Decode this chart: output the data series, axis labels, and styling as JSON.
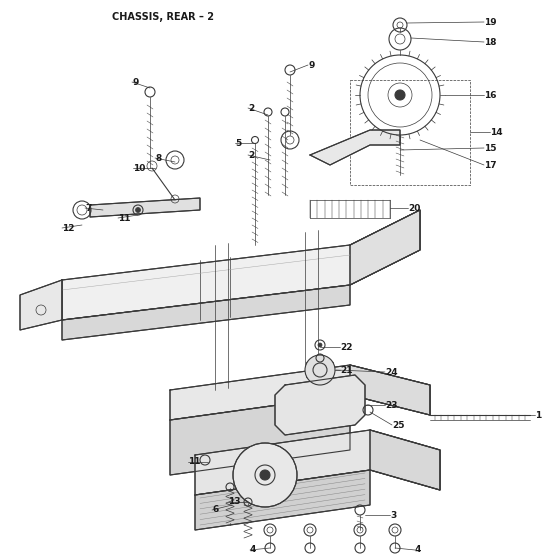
{
  "title": "CHASSIS, REAR – 2",
  "bg_color": "#ffffff",
  "line_color": "#3a3a3a",
  "label_color": "#1a1a1a",
  "title_fontsize": 7,
  "label_fontsize": 6.5,
  "figsize": [
    5.6,
    5.6
  ],
  "dpi": 100
}
